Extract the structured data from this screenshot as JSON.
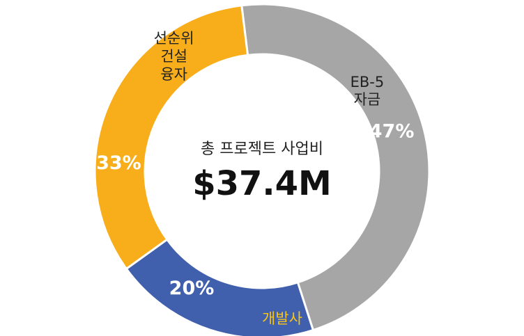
{
  "chart_data": {
    "type": "pie",
    "donut": true,
    "center_title": "총 프로젝트 사업비",
    "center_value": "$37.4M",
    "slices": [
      {
        "name": "EB-5 자금",
        "label_lines": [
          "EB-5",
          "자금"
        ],
        "value": 47,
        "value_label": "47%",
        "color": "#a6a6a6",
        "label_color": "#222222"
      },
      {
        "name": "개발사",
        "label_lines": [
          "개발사"
        ],
        "value": 20,
        "value_label": "20%",
        "color": "#4060ad",
        "label_color": "#f7c41c"
      },
      {
        "name": "선순위 건설 융자",
        "label_lines": [
          "선순위",
          "건설",
          "융자"
        ],
        "value": 33,
        "value_label": "33%",
        "color": "#f8ae1b",
        "label_color": "#222222"
      }
    ]
  }
}
